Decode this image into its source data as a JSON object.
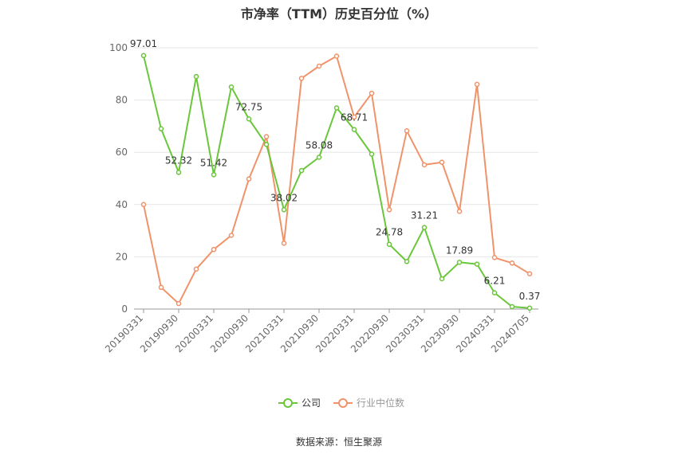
{
  "chart_data": {
    "type": "line",
    "title": "市净率（TTM）历史百分位（%）",
    "source": "数据来源：恒生聚源",
    "ylim": [
      0,
      100
    ],
    "yticks": [
      "0",
      "20",
      "40",
      "60",
      "80",
      "100"
    ],
    "grid": true,
    "legend_position": "bottom-center",
    "x": [
      "20190331",
      "20190630",
      "20190930",
      "20191231",
      "20200331",
      "20200630",
      "20200930",
      "20201231",
      "20210331",
      "20210630",
      "20210930",
      "20211231",
      "20220331",
      "20220630",
      "20220930",
      "20221231",
      "20230331",
      "20230630",
      "20230930",
      "20231231",
      "20240331",
      "20240630",
      "20240705"
    ],
    "xticks_labeled": [
      "20190331",
      "20190930",
      "20200331",
      "20200930",
      "20210331",
      "20210930",
      "20220331",
      "20220930",
      "20230331",
      "20230930",
      "20240331",
      "20240705"
    ],
    "series": [
      {
        "name": "公司",
        "color": "#6ac63a",
        "values": [
          97.01,
          69,
          52.32,
          89,
          51.42,
          85,
          72.75,
          63,
          38.02,
          53,
          58.08,
          77,
          68.71,
          59.3,
          24.78,
          18.2,
          31.21,
          11.6,
          17.89,
          17.2,
          6.21,
          0.9,
          0.37
        ],
        "labels": [
          "97.01",
          "",
          "52.32",
          "",
          "51.42",
          "",
          "72.75",
          "",
          "38.02",
          "",
          "58.08",
          "",
          "68.71",
          "",
          "24.78",
          "",
          "31.21",
          "",
          "17.89",
          "",
          "6.21",
          "",
          "0.37"
        ]
      },
      {
        "name": "行业中位数",
        "color": "#f0936a",
        "values": [
          40,
          8.3,
          2.1,
          15.3,
          22.8,
          28.2,
          49.8,
          66,
          25.2,
          88.3,
          93,
          96.8,
          73.5,
          82.6,
          38,
          68.2,
          55.2,
          56.2,
          37.4,
          86,
          19.7,
          17.6,
          13.5
        ]
      }
    ]
  }
}
